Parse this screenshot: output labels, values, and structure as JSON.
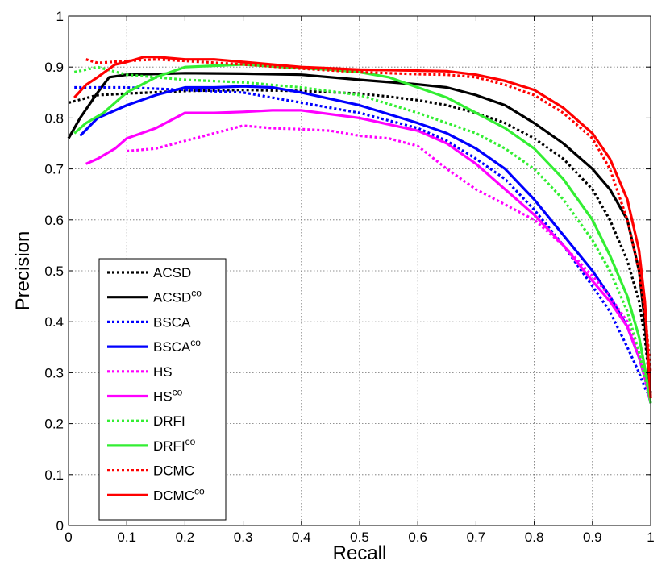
{
  "chart_data": {
    "type": "line",
    "title": "",
    "xlabel": "Recall",
    "ylabel": "Precision",
    "xlim": [
      0,
      1
    ],
    "ylim": [
      0,
      1
    ],
    "xticks": [
      "0",
      "0.1",
      "0.2",
      "0.3",
      "0.4",
      "0.5",
      "0.6",
      "0.7",
      "0.8",
      "0.9",
      "1"
    ],
    "yticks": [
      "0",
      "0.1",
      "0.2",
      "0.3",
      "0.4",
      "0.5",
      "0.6",
      "0.7",
      "0.8",
      "0.9",
      "1"
    ],
    "grid": true,
    "legend_position": "lower-left",
    "series": [
      {
        "name": "ACSD",
        "sup": "",
        "color": "#000000",
        "style": "dotted",
        "x": [
          0.0,
          0.05,
          0.1,
          0.2,
          0.3,
          0.4,
          0.5,
          0.55,
          0.6,
          0.65,
          0.7,
          0.75,
          0.8,
          0.85,
          0.9,
          0.93,
          0.96,
          0.98,
          0.99,
          1.0
        ],
        "y": [
          0.83,
          0.845,
          0.848,
          0.853,
          0.855,
          0.853,
          0.848,
          0.842,
          0.835,
          0.825,
          0.81,
          0.79,
          0.76,
          0.72,
          0.66,
          0.6,
          0.52,
          0.44,
          0.37,
          0.26
        ]
      },
      {
        "name": "ACSD",
        "sup": "co",
        "color": "#000000",
        "style": "solid",
        "x": [
          0.0,
          0.02,
          0.05,
          0.07,
          0.1,
          0.2,
          0.3,
          0.4,
          0.5,
          0.6,
          0.65,
          0.7,
          0.75,
          0.8,
          0.85,
          0.9,
          0.93,
          0.96,
          0.98,
          0.99,
          1.0
        ],
        "y": [
          0.76,
          0.8,
          0.85,
          0.88,
          0.885,
          0.888,
          0.887,
          0.885,
          0.875,
          0.866,
          0.86,
          0.845,
          0.825,
          0.79,
          0.75,
          0.7,
          0.66,
          0.6,
          0.5,
          0.4,
          0.25
        ]
      },
      {
        "name": "BSCA",
        "sup": "",
        "color": "#0000ff",
        "style": "dotted",
        "x": [
          0.01,
          0.05,
          0.1,
          0.2,
          0.3,
          0.4,
          0.5,
          0.6,
          0.65,
          0.7,
          0.75,
          0.8,
          0.85,
          0.9,
          0.93,
          0.96,
          0.98,
          0.99,
          1.0
        ],
        "y": [
          0.86,
          0.86,
          0.86,
          0.855,
          0.85,
          0.83,
          0.81,
          0.78,
          0.755,
          0.72,
          0.68,
          0.62,
          0.55,
          0.47,
          0.42,
          0.35,
          0.3,
          0.27,
          0.25
        ]
      },
      {
        "name": "BSCA",
        "sup": "co",
        "color": "#0000ff",
        "style": "solid",
        "x": [
          0.02,
          0.05,
          0.1,
          0.15,
          0.2,
          0.25,
          0.3,
          0.35,
          0.4,
          0.5,
          0.6,
          0.65,
          0.7,
          0.75,
          0.8,
          0.85,
          0.9,
          0.93,
          0.96,
          0.98,
          0.99,
          1.0
        ],
        "y": [
          0.765,
          0.8,
          0.825,
          0.845,
          0.86,
          0.86,
          0.862,
          0.86,
          0.85,
          0.825,
          0.79,
          0.77,
          0.74,
          0.7,
          0.64,
          0.57,
          0.5,
          0.45,
          0.39,
          0.33,
          0.29,
          0.24
        ]
      },
      {
        "name": "HS",
        "sup": "",
        "color": "#ff00ff",
        "style": "dotted",
        "x": [
          0.1,
          0.15,
          0.2,
          0.25,
          0.3,
          0.35,
          0.4,
          0.45,
          0.5,
          0.55,
          0.6,
          0.65,
          0.7,
          0.75,
          0.8,
          0.85,
          0.9,
          0.93,
          0.96,
          0.98,
          0.99,
          1.0
        ],
        "y": [
          0.735,
          0.74,
          0.755,
          0.77,
          0.785,
          0.78,
          0.778,
          0.775,
          0.765,
          0.76,
          0.745,
          0.7,
          0.66,
          0.63,
          0.6,
          0.55,
          0.49,
          0.45,
          0.4,
          0.34,
          0.29,
          0.25
        ]
      },
      {
        "name": "HS",
        "sup": "co",
        "color": "#ff00ff",
        "style": "solid",
        "x": [
          0.03,
          0.05,
          0.08,
          0.1,
          0.15,
          0.2,
          0.25,
          0.3,
          0.35,
          0.4,
          0.5,
          0.6,
          0.65,
          0.7,
          0.75,
          0.8,
          0.85,
          0.9,
          0.93,
          0.96,
          0.98,
          0.99,
          1.0
        ],
        "y": [
          0.71,
          0.72,
          0.74,
          0.76,
          0.78,
          0.81,
          0.81,
          0.812,
          0.815,
          0.815,
          0.8,
          0.775,
          0.75,
          0.71,
          0.66,
          0.61,
          0.55,
          0.48,
          0.44,
          0.39,
          0.33,
          0.29,
          0.24
        ]
      },
      {
        "name": "DRFI",
        "sup": "",
        "color": "#33ee33",
        "style": "dotted",
        "x": [
          0.01,
          0.05,
          0.1,
          0.2,
          0.3,
          0.4,
          0.5,
          0.6,
          0.65,
          0.7,
          0.75,
          0.8,
          0.85,
          0.9,
          0.93,
          0.96,
          0.98,
          0.99,
          1.0
        ],
        "y": [
          0.89,
          0.9,
          0.885,
          0.875,
          0.87,
          0.86,
          0.845,
          0.81,
          0.79,
          0.77,
          0.74,
          0.7,
          0.64,
          0.56,
          0.5,
          0.42,
          0.34,
          0.29,
          0.25
        ]
      },
      {
        "name": "DRFI",
        "sup": "co",
        "color": "#33ee33",
        "style": "solid",
        "x": [
          0.01,
          0.03,
          0.06,
          0.1,
          0.15,
          0.2,
          0.3,
          0.4,
          0.45,
          0.5,
          0.55,
          0.6,
          0.65,
          0.7,
          0.75,
          0.8,
          0.85,
          0.9,
          0.93,
          0.96,
          0.98,
          0.99,
          1.0
        ],
        "y": [
          0.77,
          0.79,
          0.81,
          0.85,
          0.88,
          0.9,
          0.905,
          0.898,
          0.895,
          0.89,
          0.88,
          0.86,
          0.84,
          0.81,
          0.78,
          0.74,
          0.68,
          0.6,
          0.53,
          0.45,
          0.37,
          0.31,
          0.24
        ]
      },
      {
        "name": "DCMC",
        "sup": "",
        "color": "#ff0000",
        "style": "dotted",
        "x": [
          0.03,
          0.05,
          0.1,
          0.15,
          0.2,
          0.3,
          0.4,
          0.5,
          0.6,
          0.65,
          0.7,
          0.75,
          0.8,
          0.85,
          0.9,
          0.93,
          0.96,
          0.98,
          0.99,
          1.0
        ],
        "y": [
          0.915,
          0.908,
          0.912,
          0.915,
          0.912,
          0.905,
          0.897,
          0.89,
          0.886,
          0.885,
          0.88,
          0.865,
          0.845,
          0.81,
          0.76,
          0.7,
          0.6,
          0.5,
          0.42,
          0.3
        ]
      },
      {
        "name": "DCMC",
        "sup": "co",
        "color": "#ff0000",
        "style": "solid",
        "x": [
          0.01,
          0.03,
          0.05,
          0.08,
          0.1,
          0.13,
          0.15,
          0.2,
          0.25,
          0.3,
          0.4,
          0.5,
          0.6,
          0.65,
          0.7,
          0.75,
          0.8,
          0.85,
          0.9,
          0.93,
          0.96,
          0.98,
          0.99,
          1.0
        ],
        "y": [
          0.84,
          0.865,
          0.88,
          0.905,
          0.91,
          0.92,
          0.92,
          0.915,
          0.915,
          0.91,
          0.9,
          0.895,
          0.893,
          0.892,
          0.885,
          0.873,
          0.855,
          0.82,
          0.77,
          0.72,
          0.64,
          0.54,
          0.44,
          0.25
        ]
      }
    ]
  }
}
